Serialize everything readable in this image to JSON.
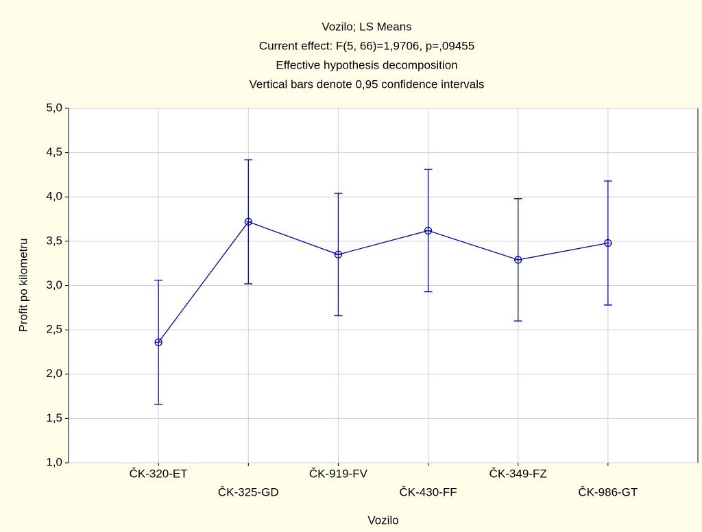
{
  "chart_data": {
    "type": "line_errorbar",
    "title": "Vozilo; LS Means",
    "subtitles": [
      "Current effect: F(5, 66)=1,9706, p=,09455",
      "Effective hypothesis decomposition",
      "Vertical bars denote 0,95 confidence intervals"
    ],
    "xlabel": "Vozilo",
    "ylabel": "Profit po kilometru",
    "categories": [
      "ČK-320-ET",
      "ČK-325-GD",
      "ČK-919-FV",
      "ČK-430-FF",
      "ČK-349-FZ",
      "ČK-986-GT"
    ],
    "values": [
      2.36,
      3.72,
      3.35,
      3.62,
      3.29,
      3.48
    ],
    "errors": [
      0.7,
      0.7,
      0.69,
      0.69,
      0.69,
      0.7
    ],
    "color": "#0000cc",
    "ylim": [
      1.0,
      5.0
    ],
    "yticks": [
      {
        "value": 1.0,
        "label": "1,0"
      },
      {
        "value": 1.5,
        "label": "1,5"
      },
      {
        "value": 2.0,
        "label": "2,0"
      },
      {
        "value": 2.5,
        "label": "2,5"
      },
      {
        "value": 3.0,
        "label": "3,0"
      },
      {
        "value": 3.5,
        "label": "3,5"
      },
      {
        "value": 4.0,
        "label": "4,0"
      },
      {
        "value": 4.5,
        "label": "4,5"
      },
      {
        "value": 5.0,
        "label": "5,0"
      }
    ],
    "grid": true
  }
}
